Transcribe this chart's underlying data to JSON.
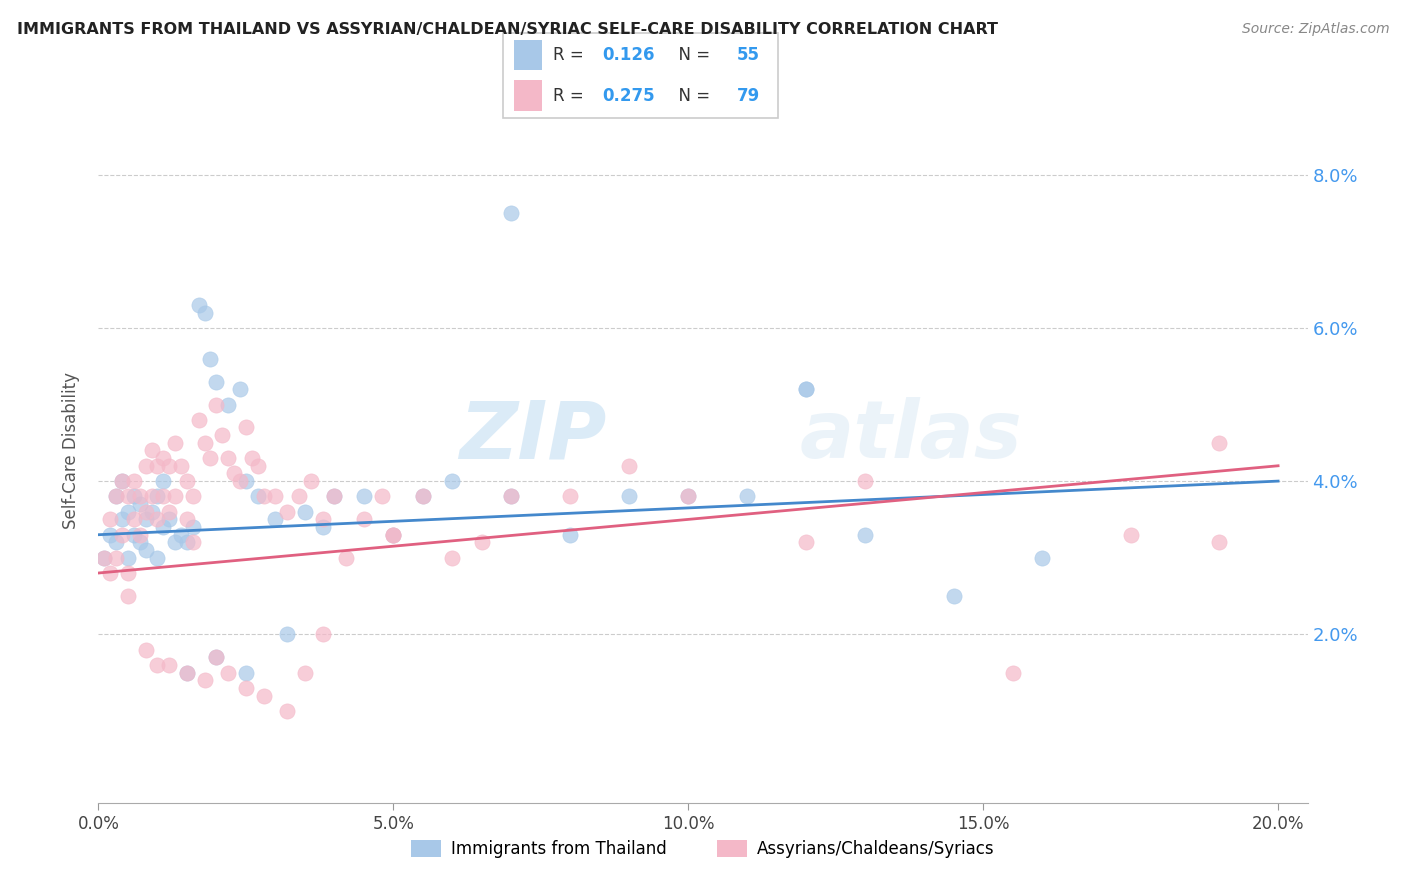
{
  "title": "IMMIGRANTS FROM THAILAND VS ASSYRIAN/CHALDEAN/SYRIAC SELF-CARE DISABILITY CORRELATION CHART",
  "source": "Source: ZipAtlas.com",
  "xlabel_ticks": [
    "0.0%",
    "5.0%",
    "10.0%",
    "15.0%",
    "20.0%"
  ],
  "xlabel_tick_vals": [
    0.0,
    0.05,
    0.1,
    0.15,
    0.2
  ],
  "ylabel_ticks": [
    "2.0%",
    "4.0%",
    "6.0%",
    "8.0%"
  ],
  "ylabel_tick_vals": [
    0.02,
    0.04,
    0.06,
    0.08
  ],
  "xlim": [
    0.0,
    0.205
  ],
  "ylim": [
    -0.002,
    0.09
  ],
  "ylabel": "Self-Care Disability",
  "legend_label1": "Immigrants from Thailand",
  "legend_label2": "Assyrians/Chaldeans/Syriacs",
  "R1": "0.126",
  "N1": "55",
  "R2": "0.275",
  "N2": "79",
  "blue_color": "#a8c8e8",
  "pink_color": "#f4b8c8",
  "blue_line_color": "#4488cc",
  "pink_line_color": "#e06080",
  "watermark_color": "#d0e8f8",
  "blue_line_y0": 0.033,
  "blue_line_y1": 0.04,
  "pink_line_y0": 0.028,
  "pink_line_y1": 0.042,
  "blue_x": [
    0.001,
    0.002,
    0.003,
    0.003,
    0.004,
    0.004,
    0.005,
    0.005,
    0.006,
    0.006,
    0.007,
    0.007,
    0.008,
    0.008,
    0.009,
    0.01,
    0.01,
    0.011,
    0.011,
    0.012,
    0.013,
    0.014,
    0.015,
    0.016,
    0.017,
    0.018,
    0.019,
    0.02,
    0.022,
    0.024,
    0.025,
    0.027,
    0.03,
    0.032,
    0.035,
    0.038,
    0.04,
    0.045,
    0.05,
    0.055,
    0.06,
    0.07,
    0.08,
    0.09,
    0.1,
    0.11,
    0.12,
    0.13,
    0.145,
    0.16,
    0.07,
    0.025,
    0.02,
    0.015,
    0.12
  ],
  "blue_y": [
    0.03,
    0.033,
    0.032,
    0.038,
    0.035,
    0.04,
    0.03,
    0.036,
    0.033,
    0.038,
    0.032,
    0.037,
    0.031,
    0.035,
    0.036,
    0.03,
    0.038,
    0.034,
    0.04,
    0.035,
    0.032,
    0.033,
    0.032,
    0.034,
    0.063,
    0.062,
    0.056,
    0.053,
    0.05,
    0.052,
    0.04,
    0.038,
    0.035,
    0.02,
    0.036,
    0.034,
    0.038,
    0.038,
    0.033,
    0.038,
    0.04,
    0.038,
    0.033,
    0.038,
    0.038,
    0.038,
    0.052,
    0.033,
    0.025,
    0.03,
    0.075,
    0.015,
    0.017,
    0.015,
    0.052
  ],
  "pink_x": [
    0.001,
    0.002,
    0.002,
    0.003,
    0.003,
    0.004,
    0.004,
    0.005,
    0.005,
    0.006,
    0.006,
    0.007,
    0.007,
    0.008,
    0.008,
    0.009,
    0.009,
    0.01,
    0.01,
    0.011,
    0.011,
    0.012,
    0.012,
    0.013,
    0.013,
    0.014,
    0.015,
    0.015,
    0.016,
    0.016,
    0.017,
    0.018,
    0.019,
    0.02,
    0.021,
    0.022,
    0.023,
    0.024,
    0.025,
    0.026,
    0.027,
    0.028,
    0.03,
    0.032,
    0.034,
    0.036,
    0.038,
    0.04,
    0.042,
    0.045,
    0.048,
    0.05,
    0.055,
    0.06,
    0.065,
    0.07,
    0.08,
    0.09,
    0.1,
    0.12,
    0.13,
    0.155,
    0.175,
    0.19,
    0.005,
    0.008,
    0.01,
    0.012,
    0.015,
    0.018,
    0.02,
    0.022,
    0.025,
    0.028,
    0.032,
    0.035,
    0.038,
    0.05,
    0.19
  ],
  "pink_y": [
    0.03,
    0.028,
    0.035,
    0.03,
    0.038,
    0.033,
    0.04,
    0.028,
    0.038,
    0.035,
    0.04,
    0.033,
    0.038,
    0.036,
    0.042,
    0.038,
    0.044,
    0.035,
    0.042,
    0.038,
    0.043,
    0.036,
    0.042,
    0.038,
    0.045,
    0.042,
    0.035,
    0.04,
    0.032,
    0.038,
    0.048,
    0.045,
    0.043,
    0.05,
    0.046,
    0.043,
    0.041,
    0.04,
    0.047,
    0.043,
    0.042,
    0.038,
    0.038,
    0.036,
    0.038,
    0.04,
    0.035,
    0.038,
    0.03,
    0.035,
    0.038,
    0.033,
    0.038,
    0.03,
    0.032,
    0.038,
    0.038,
    0.042,
    0.038,
    0.032,
    0.04,
    0.015,
    0.033,
    0.032,
    0.025,
    0.018,
    0.016,
    0.016,
    0.015,
    0.014,
    0.017,
    0.015,
    0.013,
    0.012,
    0.01,
    0.015,
    0.02,
    0.033,
    0.045
  ]
}
